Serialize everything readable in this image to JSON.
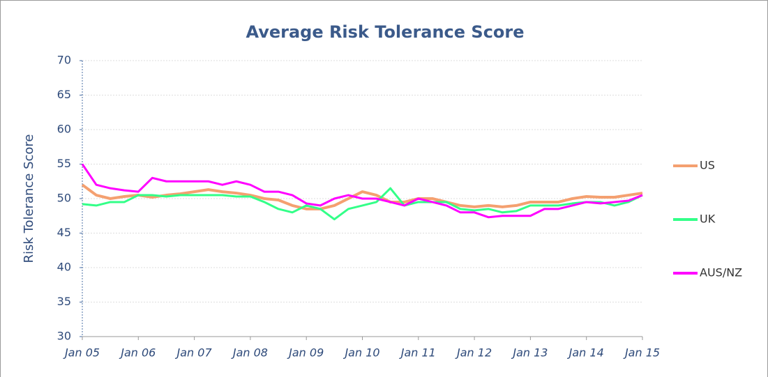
{
  "chart_data": {
    "type": "line",
    "title": "Average Risk Tolerance Score",
    "y_label": "Risk Tolerance Score",
    "categories": [
      "Jan 05",
      null,
      null,
      null,
      "Jan 06",
      null,
      null,
      null,
      "Jan 07",
      null,
      null,
      null,
      "Jan 08",
      null,
      null,
      null,
      "Jan 09",
      null,
      null,
      null,
      "Jan 10",
      null,
      null,
      null,
      "Jan 11",
      null,
      null,
      null,
      "Jan 12",
      null,
      null,
      null,
      "Jan 13",
      null,
      null,
      null,
      "Jan 14",
      null,
      null,
      null,
      "Jan 15"
    ],
    "series": [
      {
        "name": "US",
        "color": "#f4a070",
        "values": [
          52,
          50.5,
          50,
          50.3,
          50.5,
          50.2,
          50.5,
          50.7,
          51,
          51.3,
          51,
          50.8,
          50.5,
          50,
          49.8,
          49,
          48.5,
          48.5,
          49,
          50,
          51,
          50.5,
          49.5,
          49.5,
          50,
          50,
          49.5,
          49,
          48.8,
          49,
          48.8,
          49,
          49.5,
          49.5,
          49.5,
          50,
          50.3,
          50.2,
          50.2,
          50.5,
          50.8
        ]
      },
      {
        "name": "UK",
        "color": "#33ff88",
        "values": [
          49.2,
          49,
          49.5,
          49.5,
          50.5,
          50.5,
          50.3,
          50.5,
          50.5,
          50.5,
          50.5,
          50.3,
          50.3,
          49.5,
          48.5,
          48,
          49,
          48.5,
          47,
          48.5,
          49,
          49.5,
          51.5,
          49,
          49.5,
          49.5,
          49.5,
          48.5,
          48.3,
          48.5,
          48,
          48.2,
          49,
          49,
          49,
          49.3,
          49.5,
          49.5,
          49,
          49.5,
          50.5
        ]
      },
      {
        "name": "AUS/NZ",
        "color": "#ff00ff",
        "values": [
          55,
          52,
          51.5,
          51.2,
          51,
          53,
          52.5,
          52.5,
          52.5,
          52.5,
          52,
          52.5,
          52,
          51,
          51,
          50.5,
          49.3,
          49,
          50,
          50.5,
          50,
          50,
          49.5,
          49,
          50,
          49.5,
          49,
          48,
          48,
          47.3,
          47.5,
          47.5,
          47.5,
          48.5,
          48.5,
          49,
          49.5,
          49.3,
          49.5,
          49.7,
          50.5
        ]
      }
    ],
    "ylim": [
      30,
      70
    ],
    "yticks": [
      30,
      35,
      40,
      45,
      50,
      55,
      60,
      65,
      70
    ],
    "grid": true,
    "legend": "right"
  }
}
